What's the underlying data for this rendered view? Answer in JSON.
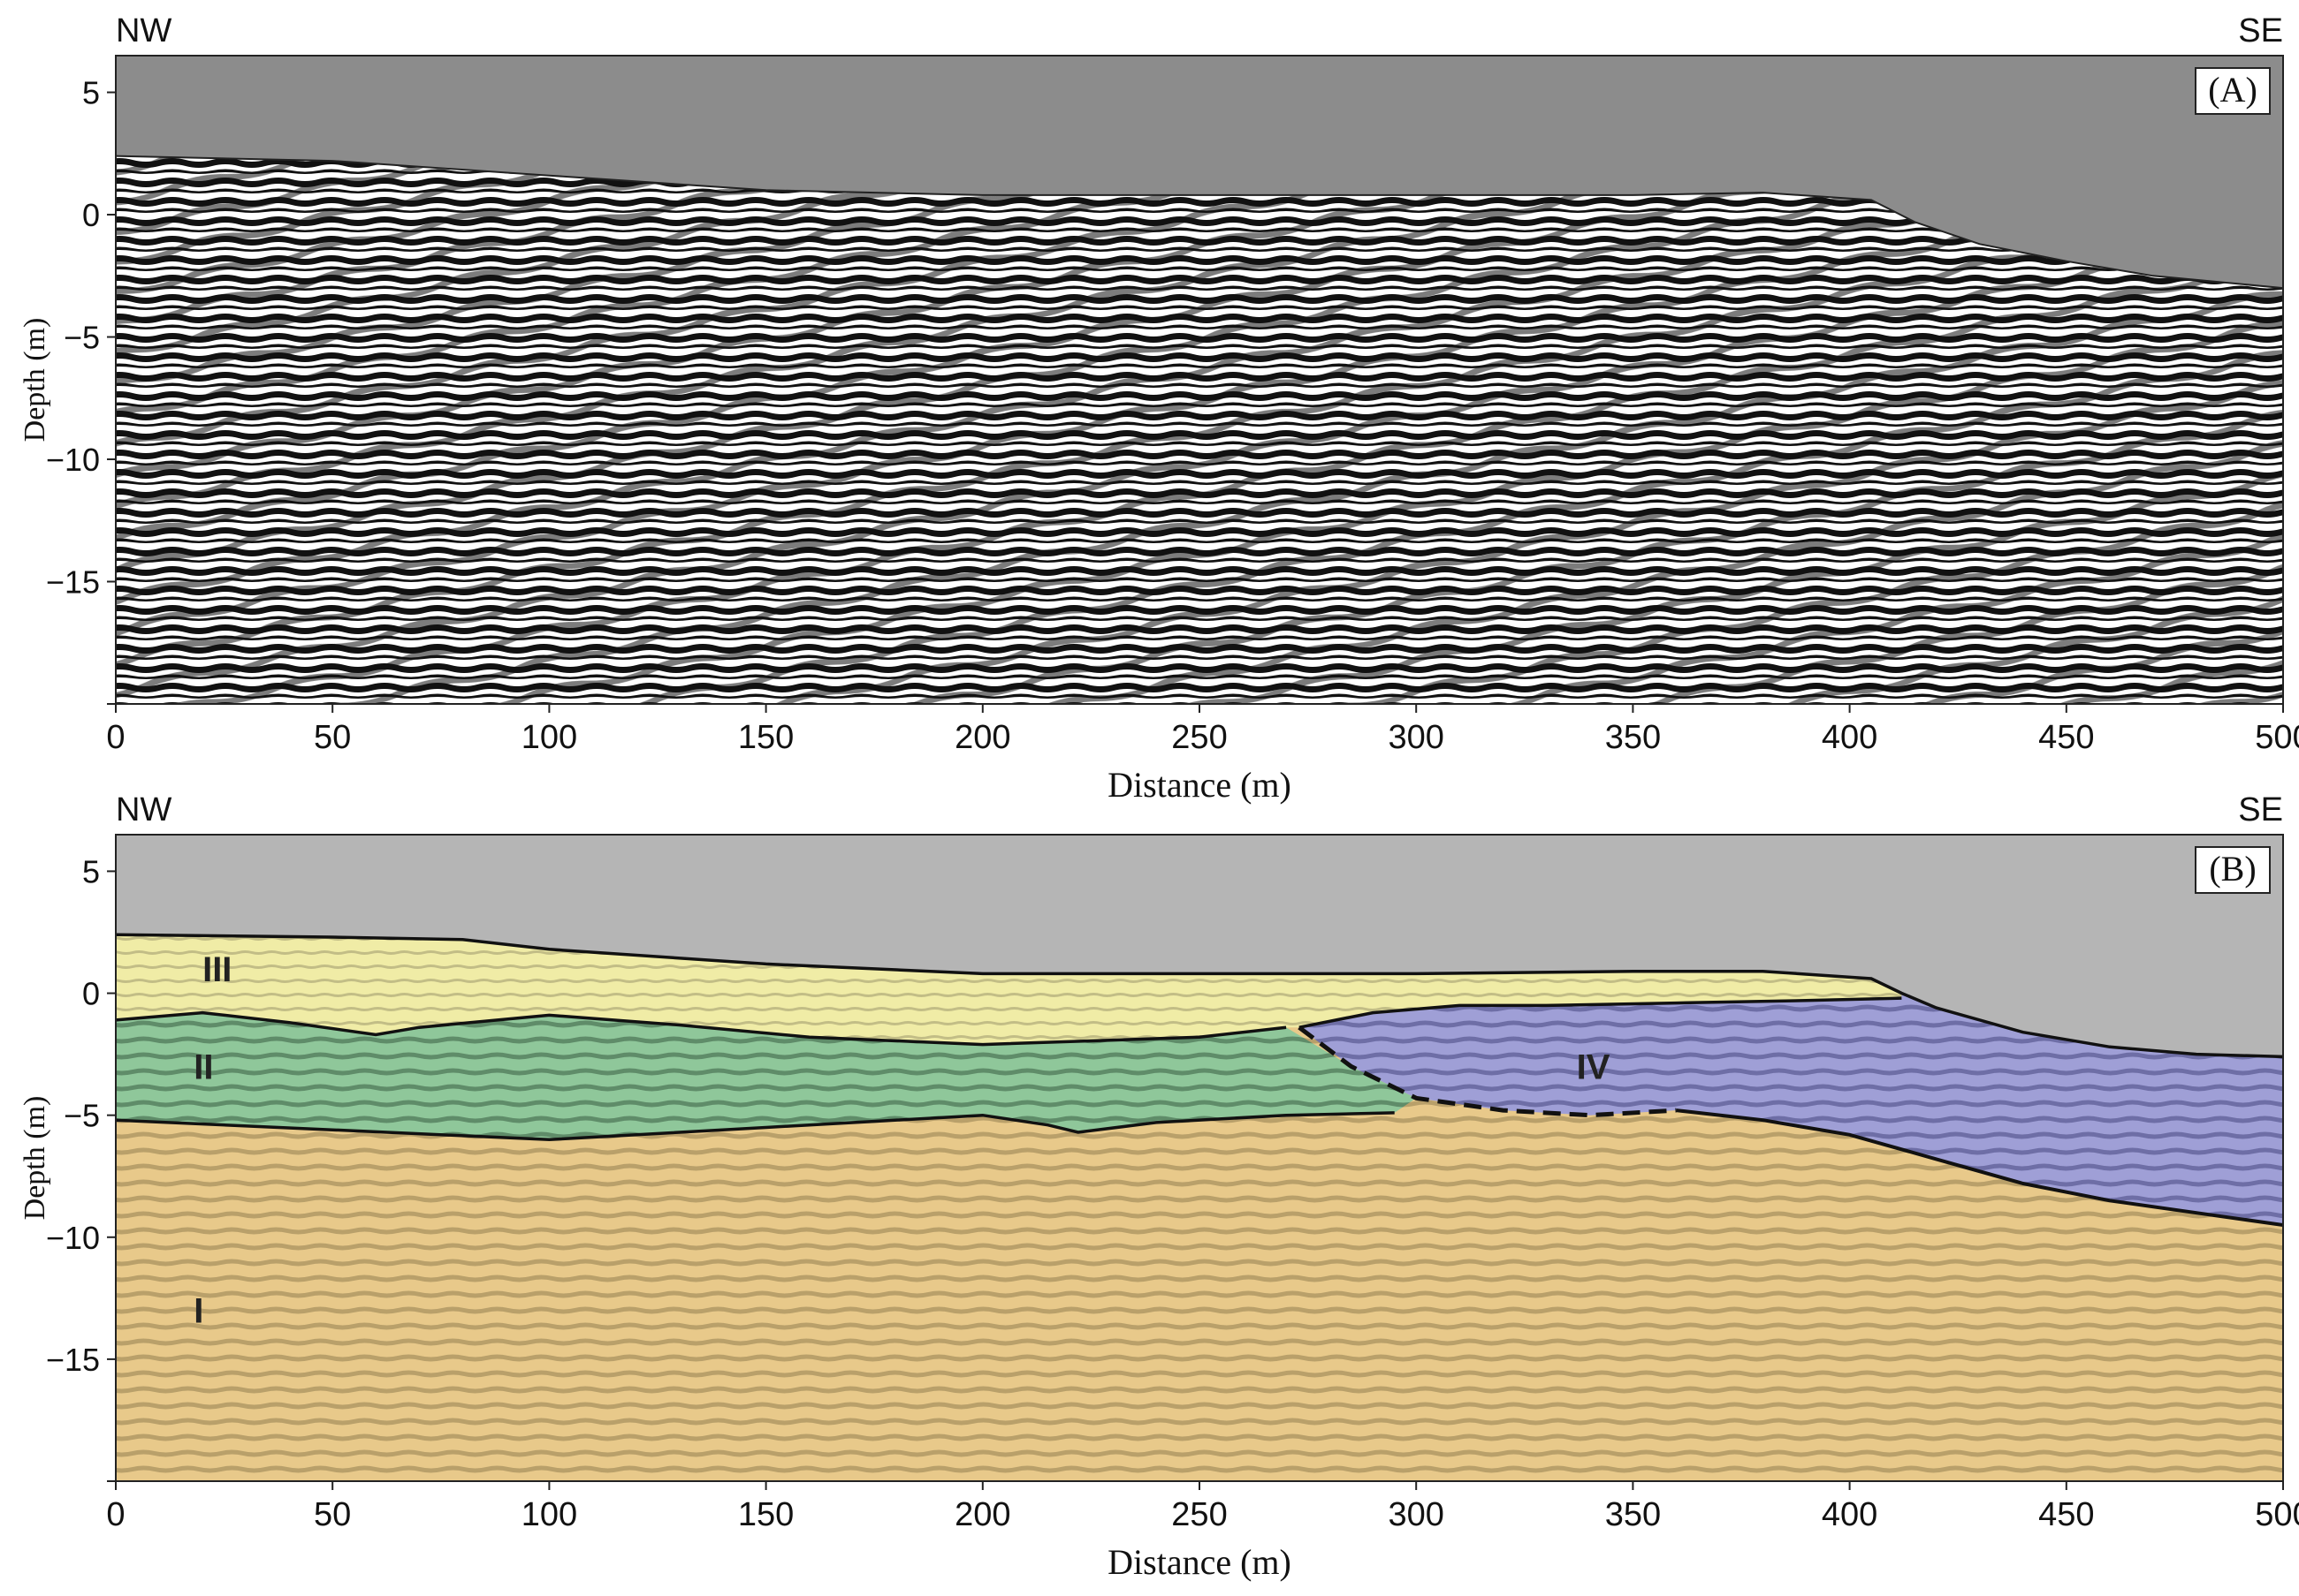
{
  "colors": {
    "sky_panel_a": "#8c8c8c",
    "sky_panel_b": "#b5b5b5",
    "unit_I": "#e8c98a",
    "unit_I_dark": "#b9a06a",
    "unit_II": "#8fc79a",
    "unit_II_dark": "#5f8c69",
    "unit_III": "#f0eca6",
    "unit_III_dark": "#c2bd86",
    "unit_IV": "#9f9fd6",
    "unit_IV_dark": "#6e6ea6",
    "radar_dark": "#111111",
    "radar_light": "#ffffff",
    "boundary": "#111111"
  },
  "chart_data": [
    {
      "type": "area",
      "panel_label": "(A)",
      "direction_left": "NW",
      "direction_right": "SE",
      "xlabel": "Distance (m)",
      "ylabel": "Depth (m)",
      "xlim": [
        0,
        500
      ],
      "ylim": [
        -20,
        6.5
      ],
      "xticks": [
        "0",
        "50",
        "100",
        "150",
        "200",
        "250",
        "300",
        "350",
        "400",
        "450",
        "500"
      ],
      "yticks": [
        "5",
        "0",
        "−5",
        "−10",
        "−15"
      ],
      "ytick_values": [
        5,
        0,
        -5,
        -10,
        -15
      ],
      "surface": {
        "x": [
          0,
          50,
          100,
          150,
          200,
          250,
          300,
          350,
          380,
          405,
          415,
          430,
          450,
          470,
          500
        ],
        "y": [
          2.4,
          2.2,
          1.6,
          1.0,
          0.8,
          0.8,
          0.8,
          0.8,
          0.9,
          0.6,
          -0.3,
          -1.2,
          -1.9,
          -2.5,
          -3.0
        ]
      }
    },
    {
      "type": "area",
      "panel_label": "(B)",
      "direction_left": "NW",
      "direction_right": "SE",
      "xlabel": "Distance (m)",
      "ylabel": "Depth (m)",
      "xlim": [
        0,
        500
      ],
      "ylim": [
        -20,
        6.5
      ],
      "xticks": [
        "0",
        "50",
        "100",
        "150",
        "200",
        "250",
        "300",
        "350",
        "400",
        "450",
        "500"
      ],
      "yticks": [
        "5",
        "0",
        "−5",
        "−10",
        "−15"
      ],
      "ytick_values": [
        5,
        0,
        -5,
        -10,
        -15
      ],
      "units": [
        {
          "name": "III",
          "label_x": 20,
          "label_y": 1.0
        },
        {
          "name": "II",
          "label_x": 18,
          "label_y": -3.0
        },
        {
          "name": "IV",
          "label_x": 337,
          "label_y": -3.0
        },
        {
          "name": "I",
          "label_x": 18,
          "label_y": -13.0
        }
      ],
      "boundaries": {
        "surface": {
          "x": [
            0,
            50,
            80,
            100,
            150,
            200,
            250,
            300,
            350,
            380,
            405,
            412,
            420,
            440,
            460,
            480,
            500
          ],
          "y": [
            2.4,
            2.3,
            2.2,
            1.8,
            1.2,
            0.8,
            0.8,
            0.8,
            0.9,
            0.9,
            0.6,
            0.0,
            -0.6,
            -1.6,
            -2.2,
            -2.5,
            -2.6
          ]
        },
        "top_II": {
          "x": [
            0,
            20,
            40,
            60,
            70,
            100,
            130,
            160,
            200,
            250,
            270
          ],
          "y": [
            -1.1,
            -0.8,
            -1.2,
            -1.7,
            -1.4,
            -0.9,
            -1.3,
            -1.8,
            -2.1,
            -1.8,
            -1.4
          ]
        },
        "top_IV": {
          "x": [
            273,
            290,
            310,
            330,
            360,
            390,
            412
          ],
          "y": [
            -1.4,
            -0.8,
            -0.5,
            -0.5,
            -0.4,
            -0.3,
            -0.2
          ]
        },
        "base_II": {
          "x": [
            0,
            50,
            100,
            150,
            200,
            215,
            222,
            240,
            270,
            295
          ],
          "y": [
            -5.2,
            -5.6,
            -6.0,
            -5.5,
            -5.0,
            -5.4,
            -5.7,
            -5.3,
            -5.0,
            -4.9
          ]
        },
        "base_IV_dashed_west": {
          "x": [
            273,
            285,
            300,
            320,
            340,
            360
          ],
          "y": [
            -1.4,
            -3.0,
            -4.3,
            -4.8,
            -5.0,
            -4.8
          ]
        },
        "base_IV_east": {
          "x": [
            360,
            380,
            400,
            420,
            440,
            460,
            480,
            500
          ],
          "y": [
            -4.8,
            -5.2,
            -5.8,
            -6.8,
            -7.8,
            -8.5,
            -9.0,
            -9.5
          ]
        }
      }
    }
  ]
}
